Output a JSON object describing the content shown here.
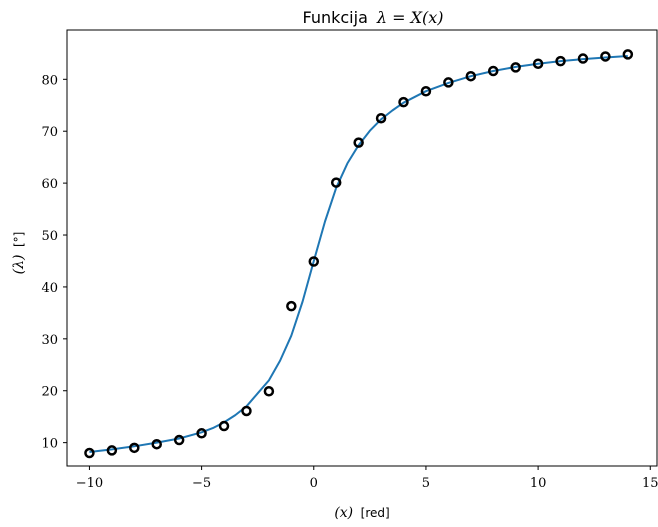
{
  "chart_data": {
    "type": "line",
    "title_prefix": "Funkcija",
    "title_math": "λ = X(x)",
    "xlabel_math": "(x)",
    "xlabel_unit": "[red]",
    "ylabel_math": "(λ)",
    "ylabel_unit": "[°]",
    "xlim": [
      -11,
      15.3
    ],
    "ylim": [
      5.5,
      89.5
    ],
    "xticks": [
      -10,
      -5,
      0,
      5,
      10,
      15
    ],
    "xtick_labels": [
      "−10",
      "−5",
      "0",
      "5",
      "10",
      "15"
    ],
    "yticks": [
      10,
      20,
      30,
      40,
      50,
      60,
      70,
      80
    ],
    "ytick_labels": [
      "10",
      "20",
      "30",
      "40",
      "50",
      "60",
      "70",
      "80"
    ],
    "grid": false,
    "series": [
      {
        "kind": "scatter",
        "marker": "open-circle",
        "color": "#000000",
        "x": [
          -10,
          -9,
          -8,
          -7,
          -6,
          -5,
          -4,
          -3,
          -2,
          -1,
          0,
          1,
          2,
          3,
          4,
          5,
          6,
          7,
          8,
          9,
          10,
          11,
          12,
          13,
          14
        ],
        "y": [
          8.0,
          8.5,
          9.0,
          9.7,
          10.5,
          11.8,
          13.2,
          16.1,
          19.9,
          36.3,
          44.9,
          60.1,
          67.8,
          72.5,
          75.6,
          77.7,
          79.4,
          80.6,
          81.6,
          82.3,
          83.0,
          83.5,
          84.0,
          84.4,
          84.8
        ]
      },
      {
        "kind": "line",
        "color": "#1f77b4",
        "x": [
          -10,
          -9,
          -8,
          -7,
          -6,
          -5,
          -4.5,
          -4,
          -3.5,
          -3,
          -2.5,
          -2,
          -1.5,
          -1,
          -0.5,
          0,
          0.5,
          1,
          1.5,
          2,
          2.5,
          3,
          3.5,
          4,
          5,
          6,
          7,
          8,
          9,
          10,
          11,
          12,
          13,
          14
        ],
        "y": [
          8.2,
          8.7,
          9.3,
          10.0,
          10.8,
          12.0,
          12.8,
          13.9,
          15.3,
          17.0,
          19.5,
          22.0,
          25.8,
          30.6,
          37.2,
          45.0,
          52.6,
          59.1,
          63.8,
          67.3,
          70.1,
          72.3,
          74.0,
          75.5,
          77.7,
          79.3,
          80.6,
          81.6,
          82.4,
          83.0,
          83.5,
          83.9,
          84.2,
          84.5
        ]
      }
    ]
  }
}
